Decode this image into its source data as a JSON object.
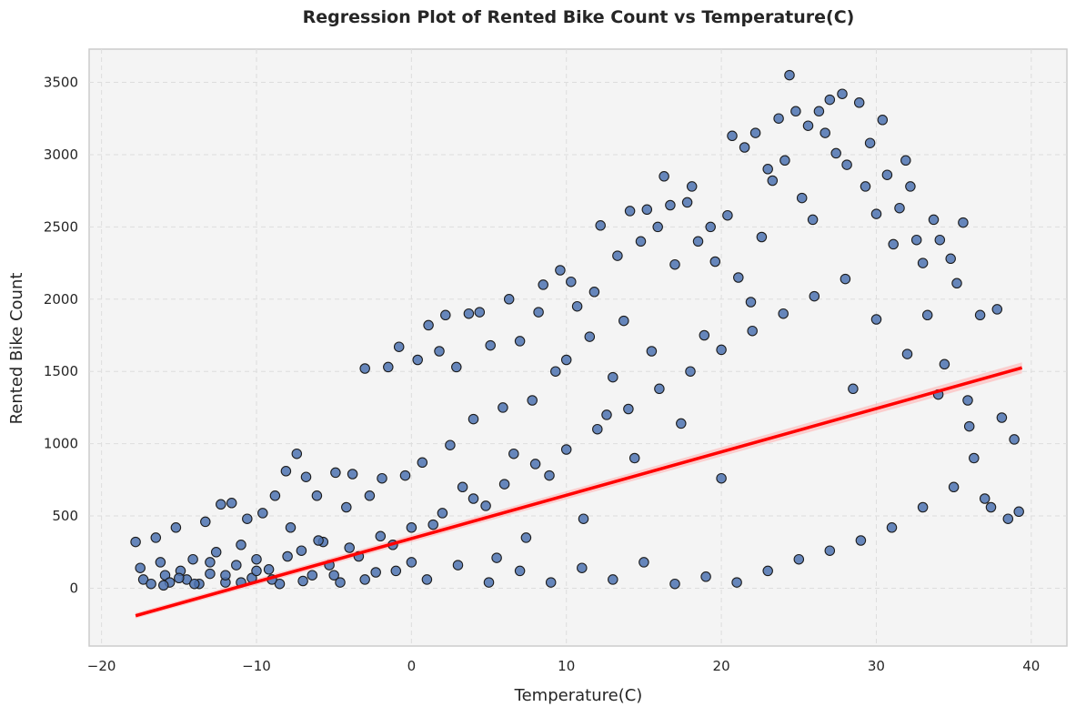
{
  "chart_data": {
    "type": "scatter",
    "title": "Regression Plot of Rented Bike Count vs Temperature(C)",
    "xlabel": "Temperature(C)",
    "ylabel": "Rented Bike Count",
    "xlim": [
      -20.8,
      42.3
    ],
    "ylim": [
      -400,
      3730
    ],
    "xticks": [
      -20,
      -10,
      0,
      10,
      20,
      30,
      40
    ],
    "yticks": [
      0,
      500,
      1000,
      1500,
      2000,
      2500,
      3000,
      3500
    ],
    "grid": true,
    "colors": {
      "background": "#f4f4f4",
      "grid": "#dddddd",
      "axes_border": "#cccccc",
      "marker_fill": "#4c72b0",
      "marker_edge": "#1c1c1c",
      "regression_line": "#ff0000",
      "confidence_band": "#ffb3b3"
    },
    "regression": {
      "x": [
        -17.8,
        39.4
      ],
      "y": [
        -190,
        1525
      ]
    },
    "points": [
      [
        -17.8,
        320
      ],
      [
        -17.5,
        140
      ],
      [
        -17.3,
        60
      ],
      [
        -16.8,
        30
      ],
      [
        -16.5,
        350
      ],
      [
        -16.2,
        180
      ],
      [
        -15.9,
        90
      ],
      [
        -15.6,
        40
      ],
      [
        -15.2,
        420
      ],
      [
        -14.9,
        120
      ],
      [
        -14.5,
        60
      ],
      [
        -14.1,
        200
      ],
      [
        -13.7,
        30
      ],
      [
        -13.3,
        460
      ],
      [
        -13.0,
        100
      ],
      [
        -12.6,
        250
      ],
      [
        -12.3,
        580
      ],
      [
        -12.0,
        40
      ],
      [
        -11.6,
        590
      ],
      [
        -11.3,
        160
      ],
      [
        -11.0,
        300
      ],
      [
        -10.6,
        480
      ],
      [
        -10.3,
        70
      ],
      [
        -10.0,
        200
      ],
      [
        -9.6,
        520
      ],
      [
        -9.2,
        130
      ],
      [
        -8.8,
        640
      ],
      [
        -8.5,
        30
      ],
      [
        -8.1,
        810
      ],
      [
        -7.8,
        420
      ],
      [
        -7.4,
        930
      ],
      [
        -7.1,
        260
      ],
      [
        -6.8,
        770
      ],
      [
        -6.4,
        90
      ],
      [
        -6.1,
        640
      ],
      [
        -5.7,
        320
      ],
      [
        -5.3,
        160
      ],
      [
        -4.9,
        800
      ],
      [
        -4.6,
        40
      ],
      [
        -4.2,
        560
      ],
      [
        -3.8,
        790
      ],
      [
        -3.4,
        220
      ],
      [
        -3.0,
        1520
      ],
      [
        -2.7,
        640
      ],
      [
        -2.3,
        110
      ],
      [
        -1.9,
        760
      ],
      [
        -1.5,
        1530
      ],
      [
        -1.2,
        300
      ],
      [
        -0.8,
        1670
      ],
      [
        -0.4,
        780
      ],
      [
        0.0,
        180
      ],
      [
        0.4,
        1580
      ],
      [
        0.7,
        870
      ],
      [
        1.1,
        1820
      ],
      [
        1.4,
        440
      ],
      [
        1.8,
        1640
      ],
      [
        2.2,
        1890
      ],
      [
        2.5,
        990
      ],
      [
        2.9,
        1530
      ],
      [
        3.3,
        700
      ],
      [
        3.7,
        1900
      ],
      [
        4.0,
        1170
      ],
      [
        4.4,
        1910
      ],
      [
        4.8,
        570
      ],
      [
        5.1,
        1680
      ],
      [
        5.5,
        210
      ],
      [
        5.9,
        1250
      ],
      [
        6.3,
        2000
      ],
      [
        6.6,
        930
      ],
      [
        7.0,
        1710
      ],
      [
        7.4,
        350
      ],
      [
        7.8,
        1300
      ],
      [
        8.2,
        1910
      ],
      [
        8.5,
        2100
      ],
      [
        8.9,
        780
      ],
      [
        9.3,
        1500
      ],
      [
        9.6,
        2200
      ],
      [
        10.0,
        1580
      ],
      [
        10.3,
        2120
      ],
      [
        10.7,
        1950
      ],
      [
        11.1,
        480
      ],
      [
        11.5,
        1740
      ],
      [
        11.8,
        2050
      ],
      [
        12.2,
        2510
      ],
      [
        12.6,
        1200
      ],
      [
        13.0,
        1460
      ],
      [
        13.3,
        2300
      ],
      [
        13.7,
        1850
      ],
      [
        14.1,
        2610
      ],
      [
        14.4,
        900
      ],
      [
        14.8,
        2400
      ],
      [
        15.2,
        2620
      ],
      [
        15.5,
        1640
      ],
      [
        15.9,
        2500
      ],
      [
        16.3,
        2850
      ],
      [
        16.7,
        2650
      ],
      [
        17.0,
        2240
      ],
      [
        17.4,
        1140
      ],
      [
        17.8,
        2670
      ],
      [
        18.1,
        2780
      ],
      [
        18.5,
        2400
      ],
      [
        18.9,
        1750
      ],
      [
        19.3,
        2500
      ],
      [
        19.6,
        2260
      ],
      [
        20.0,
        760
      ],
      [
        20.4,
        2580
      ],
      [
        20.7,
        3130
      ],
      [
        21.1,
        2150
      ],
      [
        21.5,
        3050
      ],
      [
        21.9,
        1980
      ],
      [
        22.2,
        3150
      ],
      [
        22.6,
        2430
      ],
      [
        23.0,
        2900
      ],
      [
        23.3,
        2820
      ],
      [
        23.7,
        3250
      ],
      [
        24.1,
        2960
      ],
      [
        24.4,
        3550
      ],
      [
        24.8,
        3300
      ],
      [
        25.2,
        2700
      ],
      [
        25.6,
        3200
      ],
      [
        25.9,
        2550
      ],
      [
        26.3,
        3300
      ],
      [
        26.7,
        3150
      ],
      [
        27.0,
        3380
      ],
      [
        27.4,
        3010
      ],
      [
        27.8,
        3420
      ],
      [
        28.1,
        2930
      ],
      [
        28.5,
        1380
      ],
      [
        28.9,
        3360
      ],
      [
        29.3,
        2780
      ],
      [
        29.6,
        3080
      ],
      [
        30.0,
        2590
      ],
      [
        30.4,
        3240
      ],
      [
        30.7,
        2860
      ],
      [
        31.1,
        2380
      ],
      [
        31.5,
        2630
      ],
      [
        31.9,
        2960
      ],
      [
        32.2,
        2780
      ],
      [
        32.6,
        2410
      ],
      [
        33.0,
        2250
      ],
      [
        33.3,
        1890
      ],
      [
        33.7,
        2550
      ],
      [
        34.1,
        2410
      ],
      [
        34.4,
        1550
      ],
      [
        34.8,
        2280
      ],
      [
        35.2,
        2110
      ],
      [
        35.6,
        2530
      ],
      [
        35.9,
        1300
      ],
      [
        36.3,
        900
      ],
      [
        36.7,
        1890
      ],
      [
        37.0,
        620
      ],
      [
        37.4,
        560
      ],
      [
        37.8,
        1930
      ],
      [
        38.1,
        1180
      ],
      [
        38.5,
        480
      ],
      [
        38.9,
        1030
      ],
      [
        39.2,
        530
      ],
      [
        -16.0,
        20
      ],
      [
        -15.0,
        70
      ],
      [
        -14.0,
        30
      ],
      [
        -13.0,
        180
      ],
      [
        -12.0,
        90
      ],
      [
        -11.0,
        40
      ],
      [
        -10.0,
        120
      ],
      [
        -9.0,
        60
      ],
      [
        -8.0,
        220
      ],
      [
        -7.0,
        50
      ],
      [
        -6.0,
        330
      ],
      [
        -5.0,
        90
      ],
      [
        -4.0,
        280
      ],
      [
        -3.0,
        60
      ],
      [
        -2.0,
        360
      ],
      [
        -1.0,
        120
      ],
      [
        0.0,
        420
      ],
      [
        1.0,
        60
      ],
      [
        2.0,
        520
      ],
      [
        3.0,
        160
      ],
      [
        4.0,
        620
      ],
      [
        5.0,
        40
      ],
      [
        6.0,
        720
      ],
      [
        7.0,
        120
      ],
      [
        8.0,
        860
      ],
      [
        9.0,
        40
      ],
      [
        10.0,
        960
      ],
      [
        11.0,
        140
      ],
      [
        12.0,
        1100
      ],
      [
        13.0,
        60
      ],
      [
        14.0,
        1240
      ],
      [
        15.0,
        180
      ],
      [
        16.0,
        1380
      ],
      [
        17.0,
        30
      ],
      [
        18.0,
        1500
      ],
      [
        19.0,
        80
      ],
      [
        20.0,
        1650
      ],
      [
        21.0,
        40
      ],
      [
        22.0,
        1780
      ],
      [
        23.0,
        120
      ],
      [
        24.0,
        1900
      ],
      [
        25.0,
        200
      ],
      [
        26.0,
        2020
      ],
      [
        27.0,
        260
      ],
      [
        28.0,
        2140
      ],
      [
        29.0,
        330
      ],
      [
        30.0,
        1860
      ],
      [
        31.0,
        420
      ],
      [
        32.0,
        1620
      ],
      [
        33.0,
        560
      ],
      [
        34.0,
        1340
      ],
      [
        35.0,
        700
      ],
      [
        36.0,
        1120
      ]
    ]
  }
}
